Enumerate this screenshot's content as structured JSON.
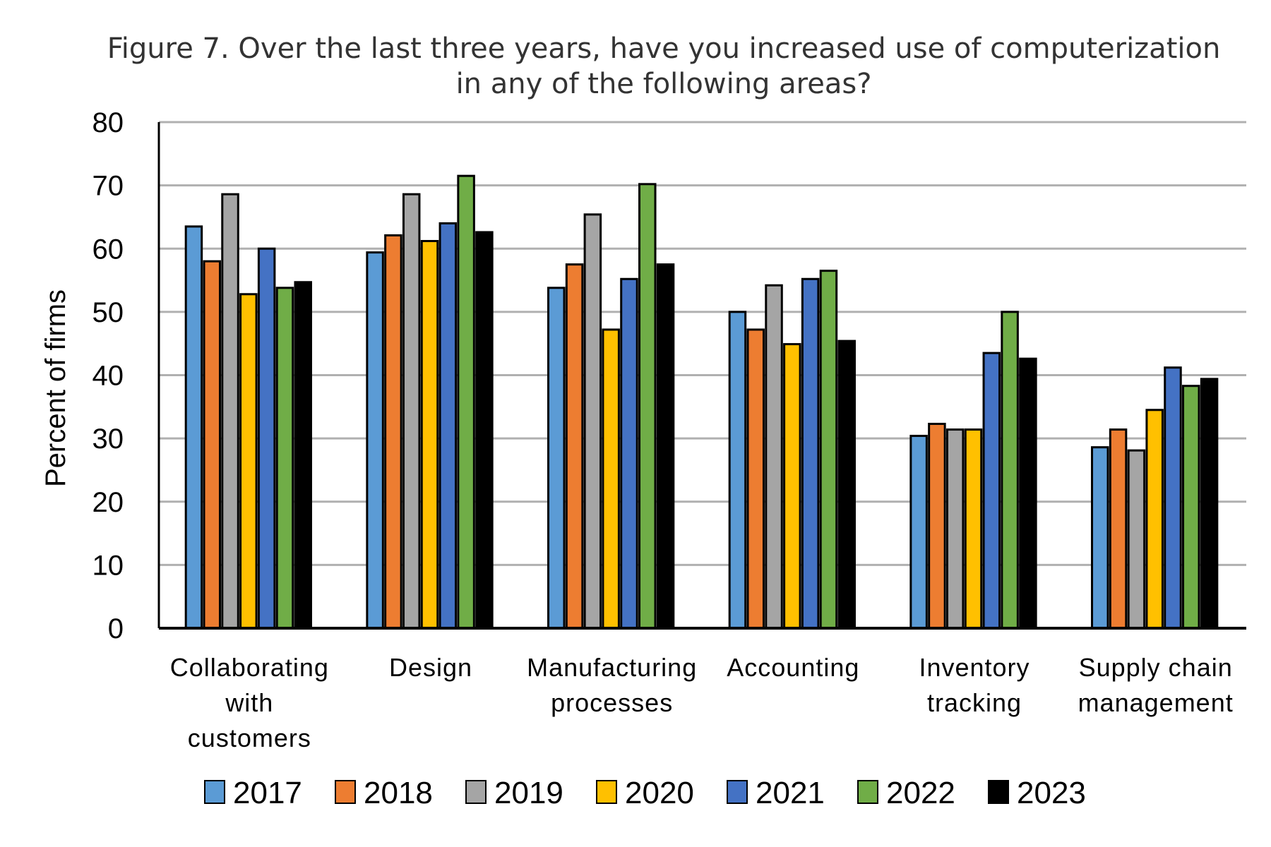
{
  "chart_data": {
    "type": "bar",
    "title": "Figure 7. Over the last three years, have you increased use of computerization in any of the following areas?",
    "title_lines": [
      "Figure 7. Over the last three years, have you increased use of computerization",
      "in any of the following areas?"
    ],
    "xlabel": "",
    "ylabel": "Percent of firms",
    "ylim": [
      0,
      80
    ],
    "yticks": [
      0,
      10,
      20,
      30,
      40,
      50,
      60,
      70,
      80
    ],
    "grid": true,
    "legend_position": "bottom",
    "categories": [
      "Collaborating with customers",
      "Design",
      "Manufacturing processes",
      "Accounting",
      "Inventory tracking",
      "Supply chain management"
    ],
    "category_lines": [
      [
        "Collaborating",
        "with",
        "customers"
      ],
      [
        "Design"
      ],
      [
        "Manufacturing",
        "processes"
      ],
      [
        "Accounting"
      ],
      [
        "Inventory",
        "tracking"
      ],
      [
        "Supply chain",
        "management"
      ]
    ],
    "series": [
      {
        "name": "2017",
        "color": "#5b9bd5",
        "values": [
          63.5,
          59.4,
          53.8,
          50.0,
          30.4,
          28.6
        ]
      },
      {
        "name": "2018",
        "color": "#ed7d31",
        "values": [
          58.0,
          62.1,
          57.5,
          47.2,
          32.3,
          31.4
        ]
      },
      {
        "name": "2019",
        "color": "#a5a5a5",
        "values": [
          68.6,
          68.6,
          65.4,
          54.2,
          31.4,
          28.1
        ]
      },
      {
        "name": "2020",
        "color": "#ffc000",
        "values": [
          52.8,
          61.2,
          47.2,
          44.9,
          31.4,
          34.5
        ]
      },
      {
        "name": "2021",
        "color": "#4472c4",
        "values": [
          60.0,
          64.0,
          55.2,
          55.2,
          43.5,
          41.2
        ]
      },
      {
        "name": "2022",
        "color": "#70ad47",
        "values": [
          53.8,
          71.5,
          70.2,
          56.5,
          50.0,
          38.3
        ]
      },
      {
        "name": "2023",
        "color": "#000000",
        "values": [
          54.7,
          62.6,
          57.5,
          45.4,
          42.6,
          39.4
        ]
      }
    ]
  }
}
